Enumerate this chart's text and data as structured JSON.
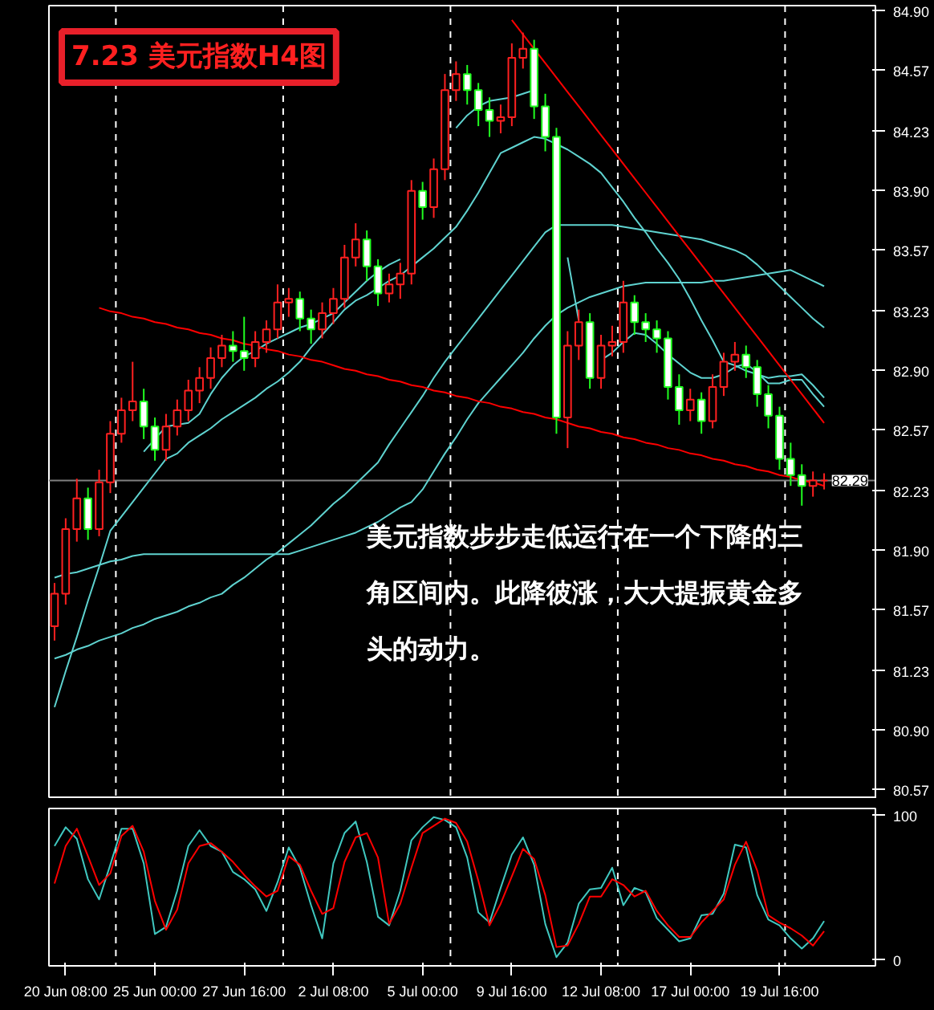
{
  "chart_data": [
    {
      "type": "candlestick",
      "title": "7.23 美元指数H4图",
      "categories": [
        null,
        null,
        null,
        null,
        null,
        null,
        null,
        null,
        null,
        null,
        null,
        null,
        null,
        null,
        null,
        null,
        null,
        null,
        null,
        null,
        null,
        null,
        null,
        null,
        null,
        null,
        null,
        null,
        null,
        null,
        null,
        null,
        null,
        null,
        null,
        null,
        null,
        null,
        null,
        null,
        null,
        null,
        null,
        null,
        null,
        null,
        null,
        null,
        null,
        null,
        null,
        null,
        null,
        null,
        null,
        null,
        null,
        null,
        null,
        null,
        null,
        null,
        null,
        null,
        null,
        null,
        null,
        null,
        null,
        null
      ],
      "ohlc": [
        [
          81.48,
          81.72,
          81.4,
          81.66
        ],
        [
          81.66,
          82.08,
          81.6,
          82.02
        ],
        [
          82.02,
          82.3,
          81.95,
          82.19
        ],
        [
          82.19,
          82.25,
          81.96,
          82.02
        ],
        [
          82.02,
          82.35,
          81.98,
          82.28
        ],
        [
          82.28,
          82.62,
          82.22,
          82.55
        ],
        [
          82.55,
          82.75,
          82.5,
          82.68
        ],
        [
          82.68,
          82.95,
          82.62,
          82.73
        ],
        [
          82.73,
          82.8,
          82.52,
          82.59
        ],
        [
          82.59,
          82.64,
          82.4,
          82.46
        ],
        [
          82.46,
          82.66,
          82.4,
          82.59
        ],
        [
          82.59,
          82.74,
          82.54,
          82.68
        ],
        [
          82.68,
          82.85,
          82.62,
          82.79
        ],
        [
          82.79,
          82.92,
          82.72,
          82.86
        ],
        [
          82.86,
          83.03,
          82.8,
          82.97
        ],
        [
          82.97,
          83.1,
          82.92,
          83.04
        ],
        [
          83.04,
          83.12,
          82.95,
          83.01
        ],
        [
          83.01,
          83.2,
          82.9,
          82.97
        ],
        [
          82.97,
          83.12,
          82.92,
          83.06
        ],
        [
          83.06,
          83.18,
          83.0,
          83.13
        ],
        [
          83.13,
          83.38,
          83.08,
          83.28
        ],
        [
          83.28,
          83.36,
          83.2,
          83.3
        ],
        [
          83.3,
          83.34,
          83.12,
          83.19
        ],
        [
          83.19,
          83.24,
          83.05,
          83.13
        ],
        [
          83.13,
          83.28,
          83.08,
          83.22
        ],
        [
          83.22,
          83.36,
          83.16,
          83.3
        ],
        [
          83.3,
          83.6,
          83.25,
          83.53
        ],
        [
          83.53,
          83.72,
          83.48,
          83.63
        ],
        [
          83.63,
          83.68,
          83.4,
          83.48
        ],
        [
          83.48,
          83.52,
          83.26,
          83.33
        ],
        [
          83.33,
          83.44,
          83.28,
          83.38
        ],
        [
          83.38,
          83.5,
          83.3,
          83.44
        ],
        [
          83.44,
          83.96,
          83.38,
          83.9
        ],
        [
          83.9,
          83.95,
          83.74,
          83.81
        ],
        [
          83.81,
          84.08,
          83.75,
          84.02
        ],
        [
          84.02,
          84.55,
          83.96,
          84.46
        ],
        [
          84.46,
          84.62,
          84.4,
          84.55
        ],
        [
          84.55,
          84.6,
          84.38,
          84.46
        ],
        [
          84.46,
          84.5,
          84.26,
          84.35
        ],
        [
          84.35,
          84.42,
          84.2,
          84.29
        ],
        [
          84.29,
          84.38,
          84.22,
          84.31
        ],
        [
          84.31,
          84.72,
          84.26,
          84.64
        ],
        [
          84.64,
          84.78,
          84.58,
          84.69
        ],
        [
          84.69,
          84.74,
          84.3,
          84.37
        ],
        [
          84.37,
          84.44,
          84.12,
          84.2
        ],
        [
          84.2,
          84.25,
          82.55,
          82.64
        ],
        [
          82.64,
          83.12,
          82.47,
          83.04
        ],
        [
          83.04,
          83.24,
          82.96,
          83.17
        ],
        [
          83.17,
          83.22,
          82.8,
          82.86
        ],
        [
          82.86,
          83.1,
          82.8,
          83.04
        ],
        [
          83.04,
          83.15,
          82.98,
          83.06
        ],
        [
          83.06,
          83.4,
          83.0,
          83.28
        ],
        [
          83.28,
          83.32,
          83.1,
          83.17
        ],
        [
          83.17,
          83.22,
          83.06,
          83.13
        ],
        [
          83.13,
          83.18,
          83.0,
          83.08
        ],
        [
          83.08,
          83.12,
          82.74,
          82.81
        ],
        [
          82.81,
          82.88,
          82.6,
          82.68
        ],
        [
          82.68,
          82.8,
          82.62,
          82.74
        ],
        [
          82.74,
          82.78,
          82.55,
          82.62
        ],
        [
          82.62,
          82.88,
          82.58,
          82.81
        ],
        [
          82.81,
          83.0,
          82.76,
          82.95
        ],
        [
          82.95,
          83.06,
          82.9,
          82.99
        ],
        [
          82.99,
          83.04,
          82.86,
          82.92
        ],
        [
          82.92,
          82.96,
          82.7,
          82.77
        ],
        [
          82.77,
          82.82,
          82.58,
          82.65
        ],
        [
          82.65,
          82.7,
          82.35,
          82.41
        ],
        [
          82.41,
          82.5,
          82.26,
          82.32
        ],
        [
          82.32,
          82.38,
          82.15,
          82.26
        ],
        [
          82.26,
          82.34,
          82.2,
          82.29
        ],
        [
          82.29,
          82.33,
          82.24,
          82.29
        ]
      ],
      "series": [
        {
          "type": "line",
          "color": "#5fd3d0",
          "values": [
            null,
            null,
            null,
            null,
            null,
            null,
            null,
            null,
            82.45,
            82.52,
            82.59,
            82.6,
            82.61,
            82.66,
            82.77,
            82.86,
            82.93,
            82.98,
            83.01,
            83.05,
            83.08,
            83.11,
            83.14,
            83.16,
            83.19,
            83.22,
            83.28,
            83.34,
            83.4,
            83.45,
            83.49,
            83.52,
            null,
            null,
            null,
            null,
            84.25,
            84.32,
            84.37,
            84.4,
            84.41,
            84.42,
            84.44,
            84.46,
            null,
            null,
            83.53,
            83.18,
            null,
            82.96,
            83.0,
            83.06,
            83.11,
            83.1,
            83.05,
            82.99,
            82.94,
            82.89,
            82.86,
            82.86,
            82.88,
            82.92,
            82.94,
            82.89,
            82.83,
            82.83,
            82.85,
            82.85,
            82.77,
            82.7
          ]
        },
        {
          "type": "line",
          "color": "#5fd3d0",
          "values": [
            81.03,
            81.23,
            81.42,
            81.62,
            81.81,
            82.01,
            82.09,
            82.17,
            82.25,
            82.33,
            82.41,
            82.44,
            82.5,
            82.54,
            82.58,
            82.63,
            82.67,
            82.71,
            82.75,
            82.8,
            82.84,
            82.89,
            82.95,
            83.03,
            83.1,
            83.17,
            83.24,
            83.29,
            83.32,
            83.36,
            83.4,
            83.43,
            83.48,
            83.53,
            83.58,
            83.64,
            83.7,
            83.79,
            83.89,
            84.0,
            84.11,
            84.14,
            84.17,
            84.2,
            84.19,
            84.16,
            84.13,
            84.09,
            84.05,
            84.0,
            83.92,
            83.84,
            83.75,
            83.67,
            83.58,
            83.5,
            83.41,
            83.3,
            83.18,
            83.07,
            82.95,
            82.93,
            82.9,
            82.88,
            82.86,
            82.87,
            82.87,
            82.88,
            82.82,
            82.75
          ]
        },
        {
          "type": "line",
          "color": "#5fd3d0",
          "values": [
            81.3,
            81.32,
            81.35,
            81.37,
            81.4,
            81.42,
            81.44,
            81.47,
            81.49,
            81.52,
            81.54,
            81.56,
            81.59,
            81.61,
            81.64,
            81.66,
            81.71,
            81.75,
            81.8,
            81.85,
            81.89,
            81.94,
            81.99,
            82.04,
            82.1,
            82.16,
            82.21,
            82.27,
            82.33,
            82.39,
            82.49,
            82.58,
            82.67,
            82.76,
            82.86,
            82.95,
            83.03,
            83.11,
            83.19,
            83.27,
            83.35,
            83.43,
            83.51,
            83.59,
            83.67,
            83.71,
            83.71,
            83.71,
            83.71,
            83.71,
            83.71,
            83.7,
            83.69,
            83.68,
            83.67,
            83.66,
            83.65,
            83.64,
            83.63,
            83.61,
            83.59,
            83.57,
            83.54,
            83.49,
            83.43,
            83.37,
            83.31,
            83.25,
            83.19,
            83.14
          ]
        },
        {
          "type": "line",
          "color": "#5fd3d0",
          "values": [
            81.75,
            81.77,
            81.78,
            81.8,
            81.82,
            81.84,
            81.85,
            81.87,
            81.88,
            81.88,
            81.88,
            81.88,
            81.88,
            81.88,
            81.88,
            81.88,
            81.88,
            81.88,
            81.88,
            81.88,
            81.88,
            81.88,
            81.9,
            81.92,
            81.94,
            81.96,
            81.98,
            82.0,
            82.03,
            82.06,
            82.1,
            82.14,
            82.17,
            82.24,
            82.34,
            82.44,
            82.53,
            82.63,
            82.72,
            82.79,
            82.86,
            82.93,
            83.0,
            83.08,
            83.15,
            83.21,
            83.25,
            83.28,
            83.31,
            83.33,
            83.35,
            83.37,
            83.38,
            83.39,
            83.39,
            83.39,
            83.39,
            83.39,
            83.39,
            83.4,
            83.4,
            83.41,
            83.42,
            83.43,
            83.44,
            83.45,
            83.46,
            83.43,
            83.4,
            83.37
          ]
        },
        {
          "type": "line",
          "color": "#ff0000",
          "values": [
            null,
            null,
            null,
            null,
            null,
            null,
            null,
            null,
            null,
            null,
            null,
            null,
            null,
            null,
            null,
            null,
            null,
            null,
            null,
            null,
            null,
            null,
            null,
            null,
            null,
            null,
            null,
            null,
            null,
            null,
            null,
            null,
            null,
            null,
            null,
            null,
            null,
            null,
            null,
            null,
            null,
            84.85,
            84.77,
            84.69,
            84.61,
            84.53,
            84.45,
            84.37,
            84.29,
            84.21,
            84.13,
            84.05,
            83.97,
            83.89,
            83.81,
            83.73,
            83.65,
            83.57,
            83.49,
            83.41,
            83.33,
            83.25,
            83.17,
            83.09,
            83.01,
            82.93,
            82.85,
            82.77,
            82.69,
            82.61
          ]
        },
        {
          "type": "line",
          "color": "#ff0000",
          "values": [
            null,
            null,
            null,
            null,
            83.25,
            83.23,
            83.22,
            83.2,
            83.19,
            83.17,
            83.16,
            83.14,
            83.13,
            83.11,
            83.1,
            83.08,
            83.07,
            83.05,
            83.04,
            83.02,
            83.01,
            82.99,
            82.98,
            82.96,
            82.95,
            82.93,
            82.91,
            82.9,
            82.88,
            82.87,
            82.85,
            82.84,
            82.82,
            82.81,
            82.79,
            82.78,
            82.76,
            82.75,
            82.73,
            82.72,
            82.7,
            82.69,
            82.67,
            82.66,
            82.64,
            82.63,
            82.61,
            82.59,
            82.58,
            82.56,
            82.55,
            82.53,
            82.52,
            82.5,
            82.49,
            82.47,
            82.46,
            82.44,
            82.43,
            82.41,
            82.4,
            82.38,
            82.37,
            82.35,
            82.34,
            82.32,
            82.31,
            82.29,
            82.28,
            82.26
          ]
        }
      ],
      "ylim": [
        80.52,
        84.93
      ],
      "yticks": [
        {
          "value": 84.9,
          "label": "84.90"
        },
        {
          "value": 84.57,
          "label": "84.57"
        },
        {
          "value": 84.23,
          "label": "84.23"
        },
        {
          "value": 83.9,
          "label": "83.90"
        },
        {
          "value": 83.57,
          "label": "83.57"
        },
        {
          "value": 83.23,
          "label": "83.23"
        },
        {
          "value": 82.9,
          "label": "82.90"
        },
        {
          "value": 82.57,
          "label": "82.57"
        },
        {
          "value": 82.23,
          "label": "82.23"
        },
        {
          "value": 81.9,
          "label": "81.90"
        },
        {
          "value": 81.57,
          "label": "81.57"
        },
        {
          "value": 81.23,
          "label": "81.23"
        },
        {
          "value": 80.9,
          "label": "80.90"
        },
        {
          "value": 80.57,
          "label": "80.57"
        }
      ],
      "tick_labels": "y",
      "grid": "x",
      "ref_lines": [
        {
          "axis": "y",
          "value": 82.29,
          "label": "82.29",
          "color": "#808080"
        }
      ],
      "annotations": [
        "美元指数步步走低运行在一个下降的三角区间内。此降彼涨，大大提振黄金多头的动力。"
      ]
    },
    {
      "type": "line",
      "categories": [
        null,
        "20 Jun 08:00",
        null,
        null,
        null,
        null,
        null,
        null,
        null,
        "25 Jun 00:00",
        null,
        null,
        null,
        null,
        null,
        null,
        null,
        "27 Jun 16:00",
        null,
        null,
        null,
        null,
        null,
        null,
        null,
        "2 Jul 08:00",
        null,
        null,
        null,
        null,
        null,
        null,
        null,
        "5 Jul 00:00",
        null,
        null,
        null,
        null,
        null,
        null,
        null,
        "9 Jul 16:00",
        null,
        null,
        null,
        null,
        null,
        null,
        null,
        "12 Jul 08:00",
        null,
        null,
        null,
        null,
        null,
        null,
        null,
        "17 Jul 00:00",
        null,
        null,
        null,
        null,
        null,
        null,
        null,
        "19 Jul 16:00",
        null,
        null,
        null,
        null
      ],
      "series": [
        {
          "color": "#40c8c0",
          "values": [
            79,
            92,
            84,
            56,
            42,
            66,
            91,
            91,
            67,
            18,
            23,
            48,
            79,
            90,
            79,
            75,
            61,
            56,
            49,
            34,
            54,
            78,
            64,
            38,
            15,
            67,
            88,
            96,
            68,
            30,
            24,
            48,
            83,
            92,
            99,
            97,
            92,
            71,
            33,
            26,
            50,
            73,
            85,
            66,
            25,
            2,
            12,
            39,
            49,
            50,
            64,
            38,
            50,
            47,
            29,
            21,
            13,
            15,
            31,
            32,
            46,
            80,
            78,
            45,
            28,
            24,
            15,
            8,
            15,
            27
          ]
        },
        {
          "color": "#ff0000",
          "values": [
            53,
            79,
            91,
            72,
            52,
            60,
            86,
            93,
            75,
            41,
            21,
            35,
            67,
            79,
            81,
            75,
            68,
            59,
            51,
            44,
            48,
            72,
            66,
            48,
            32,
            36,
            68,
            85,
            88,
            71,
            25,
            39,
            64,
            88,
            93,
            98,
            95,
            82,
            55,
            24,
            39,
            58,
            77,
            70,
            45,
            9,
            10,
            25,
            44,
            44,
            56,
            52,
            44,
            48,
            34,
            24,
            16,
            16,
            26,
            34,
            42,
            66,
            82,
            62,
            31,
            26,
            22,
            17,
            10,
            20
          ]
        }
      ],
      "ylim": [
        -4,
        105
      ],
      "yticks": [
        0,
        100
      ],
      "grid": "x"
    }
  ]
}
